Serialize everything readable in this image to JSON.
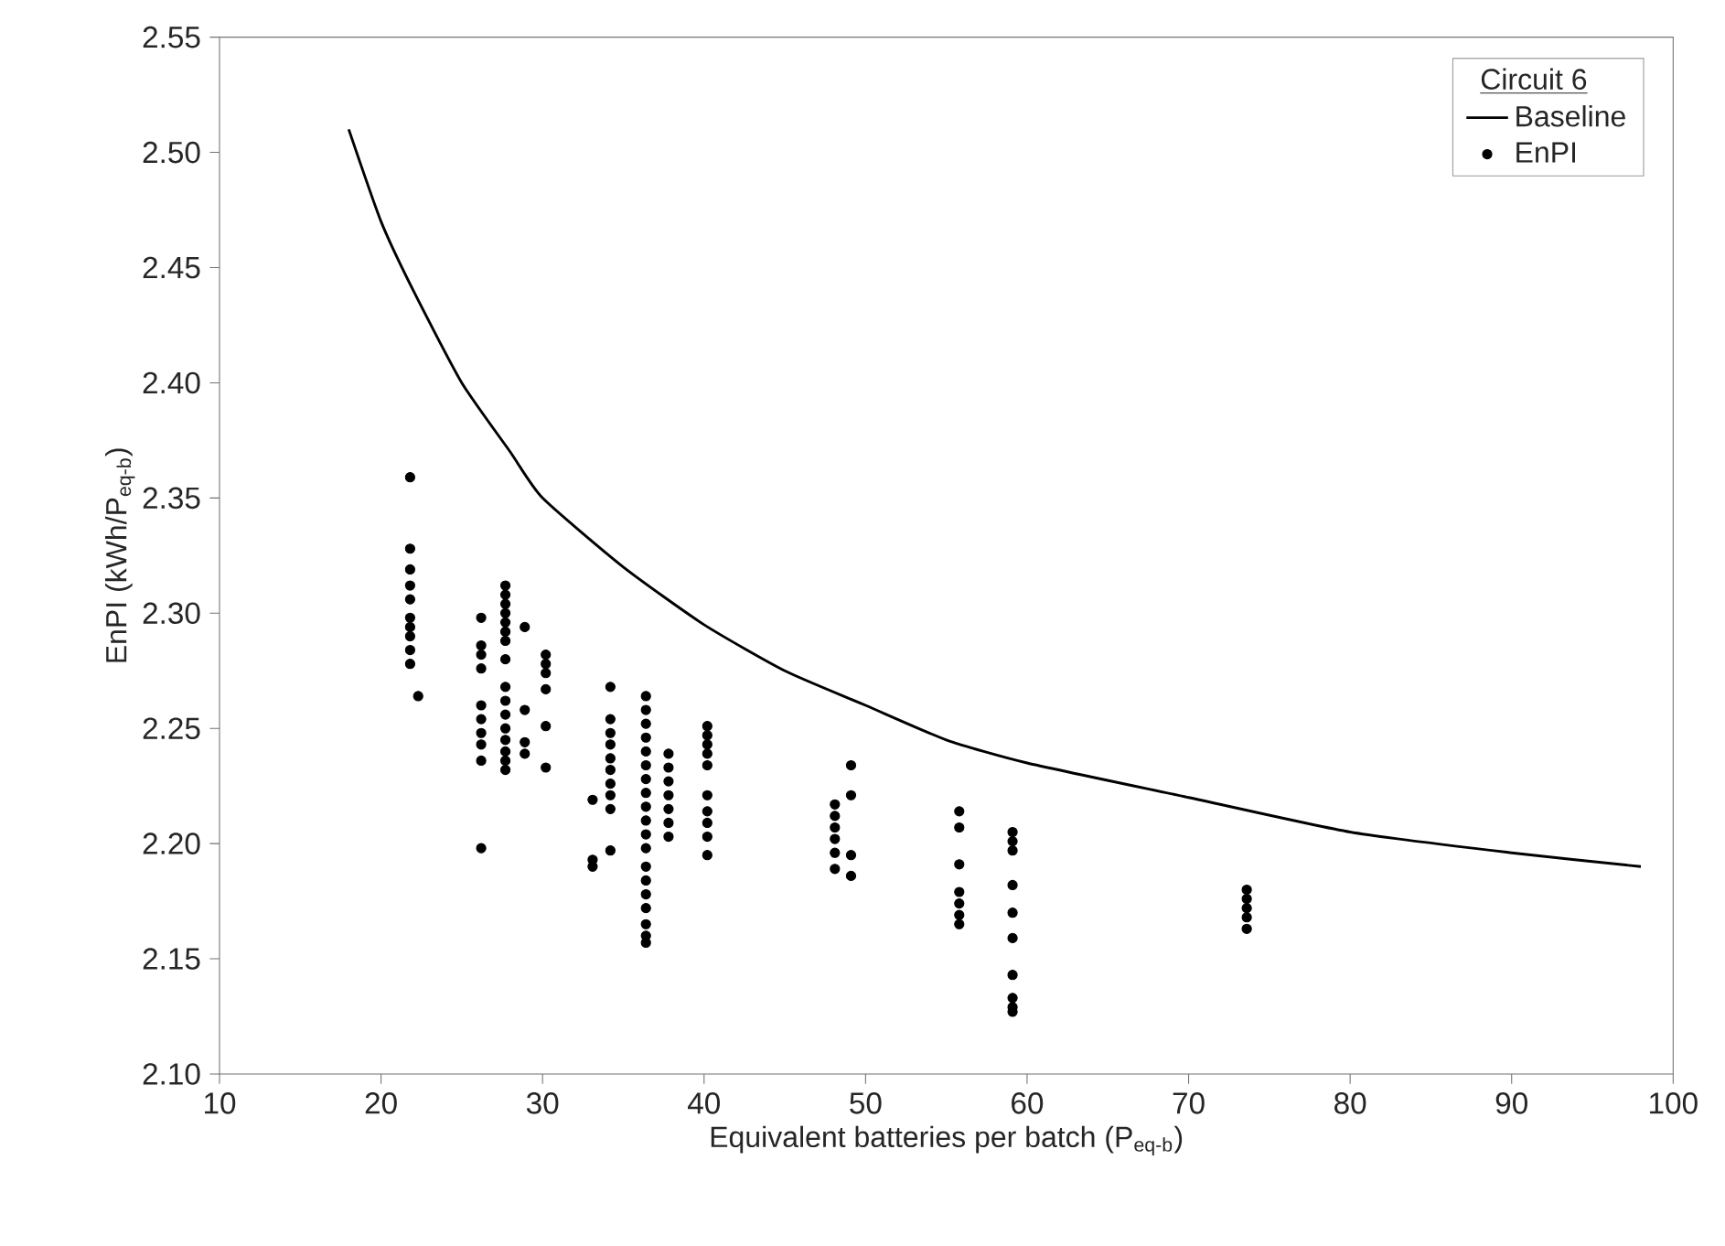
{
  "chart_data": {
    "type": "scatter",
    "xlabel": "Equivalent batteries per batch (P$_{eq-b}$)",
    "ylabel": "EnPI (kWh/P$_{eq-b}$)",
    "legend_title": "Circuit 6",
    "legend": "top right",
    "line_style": "solid",
    "xlim": [
      10,
      100
    ],
    "xticks": [
      10,
      20,
      30,
      40,
      50,
      60,
      70,
      80,
      90,
      100
    ],
    "ylim": [
      2.1,
      2.55
    ],
    "yticks": [
      {
        "value": 2.1,
        "label": "2.10"
      },
      {
        "value": 2.15,
        "label": "2.15"
      },
      {
        "value": 2.2,
        "label": "2.20"
      },
      {
        "value": 2.25,
        "label": "2.25"
      },
      {
        "value": 2.3,
        "label": "2.30"
      },
      {
        "value": 2.35,
        "label": "2.35"
      },
      {
        "value": 2.4,
        "label": "2.40"
      },
      {
        "value": 2.45,
        "label": "2.45"
      },
      {
        "value": 2.5,
        "label": "2.50"
      },
      {
        "value": 2.55,
        "label": "2.55"
      }
    ],
    "series": [
      {
        "name": "Baseline",
        "type": "line",
        "color": "#000000",
        "x": [
          18,
          20,
          22,
          25,
          28,
          30,
          35,
          40,
          45,
          50,
          55,
          60,
          70,
          80,
          90,
          98
        ],
        "values": [
          2.51,
          2.47,
          2.44,
          2.4,
          2.37,
          2.35,
          2.32,
          2.295,
          2.275,
          2.26,
          2.245,
          2.235,
          2.22,
          2.205,
          2.196,
          2.19
        ]
      },
      {
        "name": "EnPI",
        "marker": "circle",
        "color": "#000000",
        "x": [
          21.8,
          21.8,
          21.8,
          21.8,
          21.8,
          21.8,
          21.8,
          21.8,
          21.8,
          21.8,
          22.3,
          26.2,
          26.2,
          26.2,
          26.2,
          26.2,
          26.2,
          26.2,
          26.2,
          26.2,
          26.2,
          27.7,
          27.7,
          27.7,
          27.7,
          27.7,
          27.7,
          27.7,
          27.7,
          27.7,
          27.7,
          27.7,
          27.7,
          27.7,
          27.7,
          27.7,
          27.7,
          28.9,
          28.9,
          28.9,
          28.9,
          30.2,
          30.2,
          30.2,
          30.2,
          30.2,
          30.2,
          33.1,
          33.1,
          33.1,
          34.2,
          34.2,
          34.2,
          34.2,
          34.2,
          34.2,
          34.2,
          34.2,
          34.2,
          34.2,
          36.4,
          36.4,
          36.4,
          36.4,
          36.4,
          36.4,
          36.4,
          36.4,
          36.4,
          36.4,
          36.4,
          36.4,
          36.4,
          36.4,
          36.4,
          36.4,
          36.4,
          36.4,
          36.4,
          37.8,
          37.8,
          37.8,
          37.8,
          37.8,
          37.8,
          37.8,
          40.2,
          40.2,
          40.2,
          40.2,
          40.2,
          40.2,
          40.2,
          40.2,
          40.2,
          40.2,
          48.1,
          48.1,
          48.1,
          48.1,
          48.1,
          48.1,
          49.1,
          49.1,
          49.1,
          49.1,
          55.8,
          55.8,
          55.8,
          55.8,
          55.8,
          55.8,
          55.8,
          59.1,
          59.1,
          59.1,
          59.1,
          59.1,
          59.1,
          59.1,
          59.1,
          59.1,
          59.1,
          73.6,
          73.6,
          73.6,
          73.6,
          73.6
        ],
        "values": [
          2.359,
          2.328,
          2.319,
          2.312,
          2.306,
          2.298,
          2.294,
          2.29,
          2.284,
          2.278,
          2.264,
          2.298,
          2.286,
          2.282,
          2.276,
          2.26,
          2.254,
          2.248,
          2.243,
          2.236,
          2.198,
          2.312,
          2.308,
          2.304,
          2.3,
          2.296,
          2.292,
          2.288,
          2.28,
          2.268,
          2.262,
          2.256,
          2.25,
          2.245,
          2.24,
          2.236,
          2.232,
          2.294,
          2.258,
          2.244,
          2.239,
          2.282,
          2.278,
          2.274,
          2.267,
          2.251,
          2.233,
          2.219,
          2.193,
          2.19,
          2.268,
          2.254,
          2.248,
          2.243,
          2.237,
          2.232,
          2.226,
          2.221,
          2.215,
          2.197,
          2.264,
          2.258,
          2.252,
          2.246,
          2.24,
          2.234,
          2.228,
          2.222,
          2.216,
          2.21,
          2.204,
          2.198,
          2.19,
          2.184,
          2.178,
          2.172,
          2.165,
          2.16,
          2.157,
          2.239,
          2.233,
          2.227,
          2.221,
          2.215,
          2.209,
          2.203,
          2.251,
          2.247,
          2.243,
          2.239,
          2.234,
          2.221,
          2.214,
          2.209,
          2.203,
          2.195,
          2.217,
          2.212,
          2.207,
          2.202,
          2.196,
          2.189,
          2.234,
          2.221,
          2.195,
          2.186,
          2.214,
          2.207,
          2.191,
          2.179,
          2.174,
          2.169,
          2.165,
          2.205,
          2.201,
          2.197,
          2.182,
          2.17,
          2.159,
          2.143,
          2.133,
          2.129,
          2.127,
          2.18,
          2.176,
          2.172,
          2.168,
          2.163
        ]
      }
    ]
  }
}
